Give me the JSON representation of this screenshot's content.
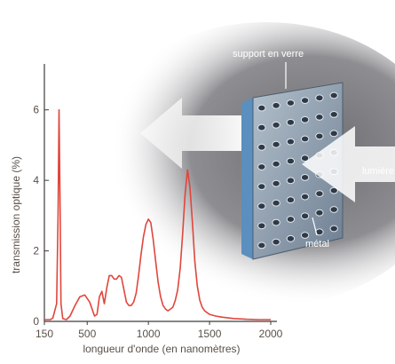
{
  "chart_data": {
    "type": "line",
    "title": "",
    "xlabel": "longueur d'onde (en nanomètres)",
    "ylabel": "transmission optique (%)",
    "xlim": [
      150,
      2000
    ],
    "ylim": [
      0,
      7
    ],
    "x_ticks": [
      {
        "value": 150,
        "label": "150"
      },
      {
        "value": 500,
        "label": "500"
      },
      {
        "value": 1000,
        "label": "1000"
      },
      {
        "value": 1500,
        "label": "1500"
      },
      {
        "value": 2000,
        "label": "2000"
      }
    ],
    "y_ticks": [
      {
        "value": 0,
        "label": "0"
      },
      {
        "value": 2,
        "label": "2"
      },
      {
        "value": 4,
        "label": "4"
      },
      {
        "value": 6,
        "label": "6"
      }
    ],
    "grid": false,
    "series": [
      {
        "color": "#e0463c",
        "x": [
          150,
          200,
          220,
          250,
          262,
          270,
          278,
          286,
          300,
          330,
          360,
          400,
          440,
          480,
          520,
          560,
          580,
          600,
          620,
          640,
          660,
          680,
          700,
          720,
          740,
          760,
          780,
          800,
          820,
          840,
          860,
          880,
          900,
          920,
          940,
          960,
          980,
          1000,
          1020,
          1040,
          1060,
          1080,
          1100,
          1120,
          1140,
          1160,
          1180,
          1200,
          1220,
          1240,
          1260,
          1280,
          1300,
          1320,
          1340,
          1360,
          1380,
          1400,
          1420,
          1440,
          1460,
          1480,
          1500,
          1550,
          1600,
          1700,
          1800,
          1900,
          2000
        ],
        "y": [
          0.05,
          0.05,
          0.1,
          0.5,
          3.0,
          6.0,
          3.5,
          0.5,
          0.08,
          0.05,
          0.15,
          0.45,
          0.7,
          0.75,
          0.55,
          0.15,
          0.2,
          0.7,
          0.85,
          0.5,
          0.95,
          1.3,
          1.3,
          1.2,
          1.2,
          1.3,
          1.25,
          0.9,
          0.55,
          0.45,
          0.45,
          0.55,
          0.8,
          1.3,
          1.9,
          2.4,
          2.75,
          2.9,
          2.8,
          2.3,
          1.7,
          1.1,
          0.7,
          0.45,
          0.35,
          0.3,
          0.35,
          0.4,
          0.6,
          0.9,
          1.5,
          2.5,
          3.6,
          4.3,
          3.8,
          2.8,
          1.7,
          1.0,
          0.6,
          0.4,
          0.3,
          0.25,
          0.2,
          0.15,
          0.12,
          0.08,
          0.06,
          0.05,
          0.05
        ]
      }
    ]
  },
  "illustration": {
    "label_top": "support en verre",
    "label_bottom": "métal",
    "label_right": "lumière",
    "plate_color": "#8a9aac",
    "glass_color": "#5a8fbf",
    "arrow_color": "#ffffff"
  }
}
